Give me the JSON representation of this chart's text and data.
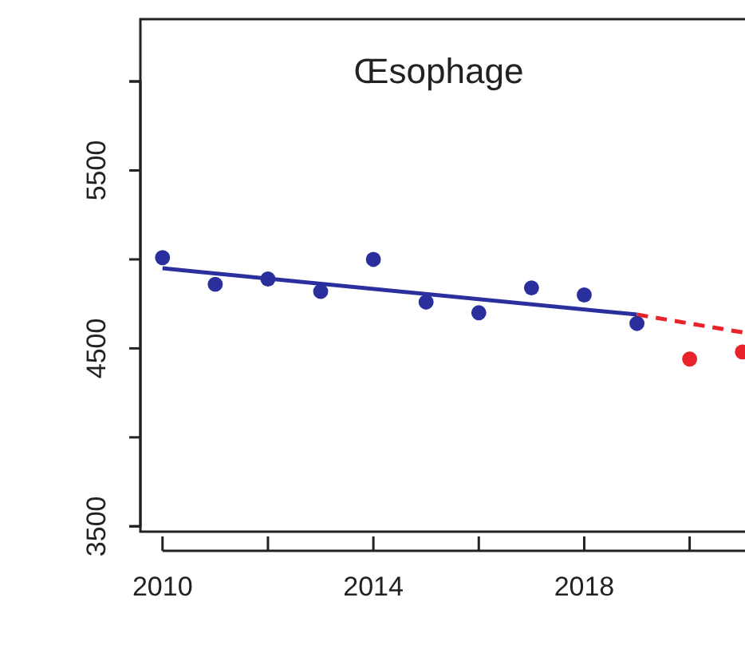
{
  "chart_data": {
    "type": "scatter",
    "title": "Œsophage",
    "xlim": [
      2009.58,
      2021.05
    ],
    "ylim": [
      3470,
      6350
    ],
    "xticks": [
      2010,
      {
        "value": 2012,
        "label": null
      },
      2014,
      {
        "value": 2016,
        "label": null
      },
      2018,
      {
        "value": 2020,
        "label": null
      }
    ],
    "yticks": [
      3500,
      {
        "value": 4000,
        "label": null
      },
      4500,
      {
        "value": 5000,
        "label": null
      },
      5500,
      {
        "value": 6000,
        "label": null
      }
    ],
    "marker": "circle",
    "grid": false,
    "series": [
      {
        "color": "#2b2f9e",
        "x": [
          2010,
          2011,
          2012,
          2013,
          2014,
          2015,
          2016,
          2017,
          2018,
          2019
        ],
        "values": [
          5010,
          4860,
          4890,
          4820,
          5000,
          4760,
          4700,
          4840,
          4800,
          4640
        ]
      },
      {
        "color": "#e8242a",
        "x": [
          2020,
          2021
        ],
        "values": [
          4440,
          4480
        ]
      },
      {
        "type": "line",
        "color": "#2b2f9e",
        "line_style": "solid",
        "marker": "none",
        "x": [
          2010,
          2019
        ],
        "values": [
          4950,
          4690
        ]
      },
      {
        "type": "line",
        "color": "#e8242a",
        "line_style": "dashed",
        "marker": "none",
        "x": [
          2019,
          2021
        ],
        "values": [
          4690,
          4590
        ]
      }
    ]
  }
}
